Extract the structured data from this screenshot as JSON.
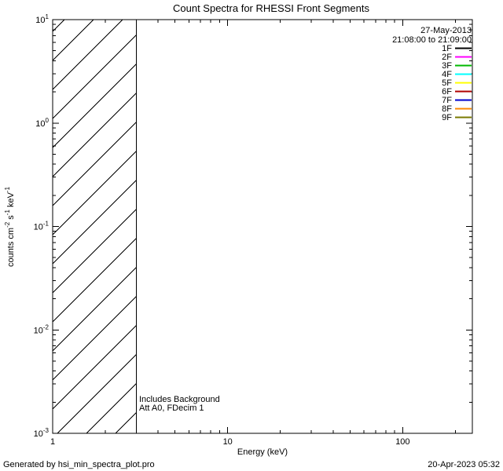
{
  "page": {
    "background": "#ffffff",
    "footer_left": "Generated by hsi_min_spectra_plot.pro",
    "footer_right": "20-Apr-2023 05:32"
  },
  "chart_data": {
    "type": "line",
    "title": "Count Spectra for RHESSI Front Segments",
    "xlabel": "Energy (keV)",
    "ylabel_parts": [
      {
        "text": "counts cm"
      },
      {
        "text": "-2",
        "sup": true
      },
      {
        "text": " s"
      },
      {
        "text": "-1",
        "sup": true
      },
      {
        "text": " keV"
      },
      {
        "text": "-1",
        "sup": true
      }
    ],
    "x_axis": {
      "scale": "log",
      "min": 1,
      "max": 250,
      "major_ticks": [
        1,
        10,
        100
      ],
      "tick_labels": [
        "1",
        "10",
        "100"
      ]
    },
    "y_axis": {
      "scale": "log",
      "min": 0.001,
      "max": 10,
      "major_tick_exponents": [
        -3,
        -2,
        -1,
        0,
        1
      ]
    },
    "series": [],
    "hatch_region": {
      "x_min": 1,
      "x_max": 3,
      "style": "diagonal-line-fill"
    },
    "annotations": [
      "Includes Background",
      "Att A0, FDecim 1"
    ],
    "legend": {
      "date": "27-May-2013",
      "time_range": "21:08:00 to 21:09:00",
      "entries": [
        {
          "label": "1F",
          "color": "#000000"
        },
        {
          "label": "2F",
          "color": "#ff00ff"
        },
        {
          "label": "3F",
          "color": "#00b800"
        },
        {
          "label": "4F",
          "color": "#00ffff"
        },
        {
          "label": "5F",
          "color": "#ffff00"
        },
        {
          "label": "6F",
          "color": "#b00000"
        },
        {
          "label": "7F",
          "color": "#0000cc"
        },
        {
          "label": "8F",
          "color": "#ff8800"
        },
        {
          "label": "9F",
          "color": "#7a7a00"
        }
      ]
    }
  }
}
